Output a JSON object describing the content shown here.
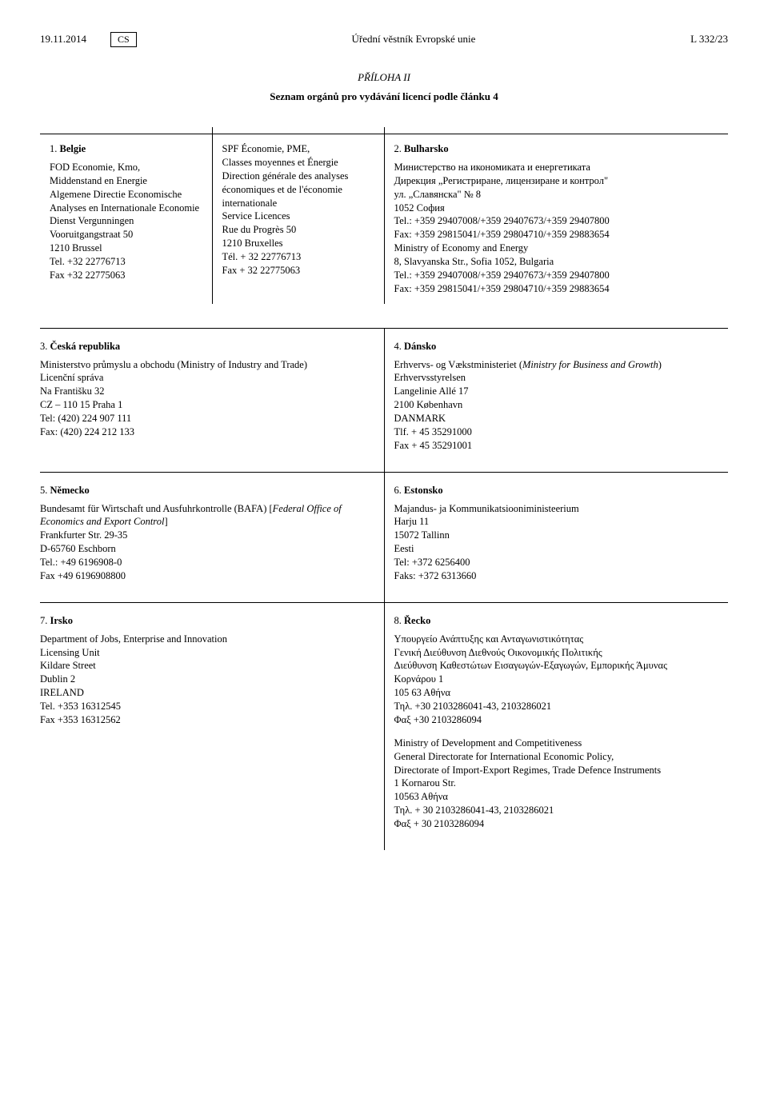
{
  "header": {
    "date": "19.11.2014",
    "lang": "CS",
    "journal": "Úřední věstník Evropské unie",
    "page": "L 332/23"
  },
  "annex": {
    "title": "PŘÍLOHA II",
    "subtitle": "Seznam orgánů pro vydávání licencí podle článku 4"
  },
  "entries": {
    "e1": {
      "num": "1.",
      "title": "Belgie",
      "lines": [
        "FOD Economie, Kmo,",
        "Middenstand en Energie",
        "Algemene Directie Economische Analyses en Internationale Economie",
        "Dienst Vergunningen",
        "Vooruitgangstraat 50",
        "1210 Brussel",
        "Tel. +32 22776713",
        "Fax +32 22775063"
      ]
    },
    "e1b": {
      "lines": [
        "SPF Économie, PME,",
        "Classes moyennes et Énergie",
        "Direction générale des analyses économiques et de l'économie internationale",
        "Service Licences",
        "Rue du Progrès 50",
        "1210 Bruxelles",
        "Tél. + 32 22776713",
        "Fax + 32 22775063"
      ]
    },
    "e2": {
      "num": "2.",
      "title": "Bulharsko",
      "lines": [
        "Министерство на икономиката и енергетиката",
        "Дирекция „Регистриране, лицензиране и контрол\"",
        "ул. „Славянска\" № 8",
        "1052 София",
        "Tel.: +359 29407008/+359 29407673/+359 29407800",
        "Fax: +359 29815041/+359 29804710/+359 29883654",
        "Ministry of Economy and Energy",
        "8, Slavyanska Str., Sofia 1052, Bulgaria",
        "Tel.: +359 29407008/+359 29407673/+359 29407800",
        "Fax: +359 29815041/+359 29804710/+359 29883654"
      ]
    },
    "e3": {
      "num": "3.",
      "title": "Česká republika",
      "lines": [
        "Ministerstvo průmyslu a obchodu (Ministry of Industry and Trade)",
        "Licenční správa",
        "Na Františku 32",
        "CZ – 110 15 Praha 1",
        "Tel: (420) 224 907 111",
        "Fax: (420) 224 212 133"
      ]
    },
    "e4": {
      "num": "4.",
      "title": "Dánsko",
      "italic_pre": "Erhvervs- og Vækstministeriet (",
      "italic": "Ministry for Business and Growth",
      "italic_post": ")",
      "lines": [
        "Erhvervsstyrelsen",
        "Langelinie Allé 17",
        "2100 København",
        "DANMARK",
        "Tlf. + 45 35291000",
        "Fax + 45 35291001"
      ]
    },
    "e5": {
      "num": "5.",
      "title": "Německo",
      "line1_pre": "Bundesamt für Wirtschaft und Ausfuhrkontrolle (BAFA) [",
      "line1_italic": "Federal Office of Economics and Export Control",
      "line1_post": "]",
      "lines": [
        "Frankfurter Str. 29-35",
        "D-65760 Eschborn",
        "Tel.: +49 6196908-0",
        "Fax +49 6196908800"
      ]
    },
    "e6": {
      "num": "6.",
      "title": "Estonsko",
      "lines": [
        "Majandus- ja Kommunikatsiooniministeerium",
        "Harju 11",
        "15072 Tallinn",
        "Eesti",
        "Tel: +372 6256400",
        "Faks: +372 6313660"
      ]
    },
    "e7": {
      "num": "7.",
      "title": "Irsko",
      "lines": [
        "Department of Jobs, Enterprise and Innovation",
        "Licensing Unit",
        "Kildare Street",
        "Dublin 2",
        "IRELAND",
        "Tel. +353 16312545",
        "Fax +353 16312562"
      ]
    },
    "e8": {
      "num": "8.",
      "title": "Řecko",
      "lines": [
        "Υπουργείο Ανάπτυξης και Ανταγωνιστικότητας",
        "Γενική Διεύθυνση Διεθνούς Οικονομικής Πολιτικής",
        "Διεύθυνση Καθεστώτων Εισαγωγών-Εξαγωγών, Εμπορικής Άμυνας",
        "Κορνάρου 1",
        "105 63 Αθήνα",
        "Τηλ. +30 2103286041-43, 2103286021",
        "Φαξ +30 2103286094"
      ],
      "lines2": [
        "Ministry of Development and Competitiveness",
        "General Directorate for International Economic Policy,",
        "Directorate of Import-Export Regimes, Trade Defence Instruments",
        "1 Kornarou Str.",
        "10563 Αθήνα",
        "Τηλ. + 30 2103286041-43, 2103286021",
        "Φαξ + 30 2103286094"
      ]
    }
  }
}
